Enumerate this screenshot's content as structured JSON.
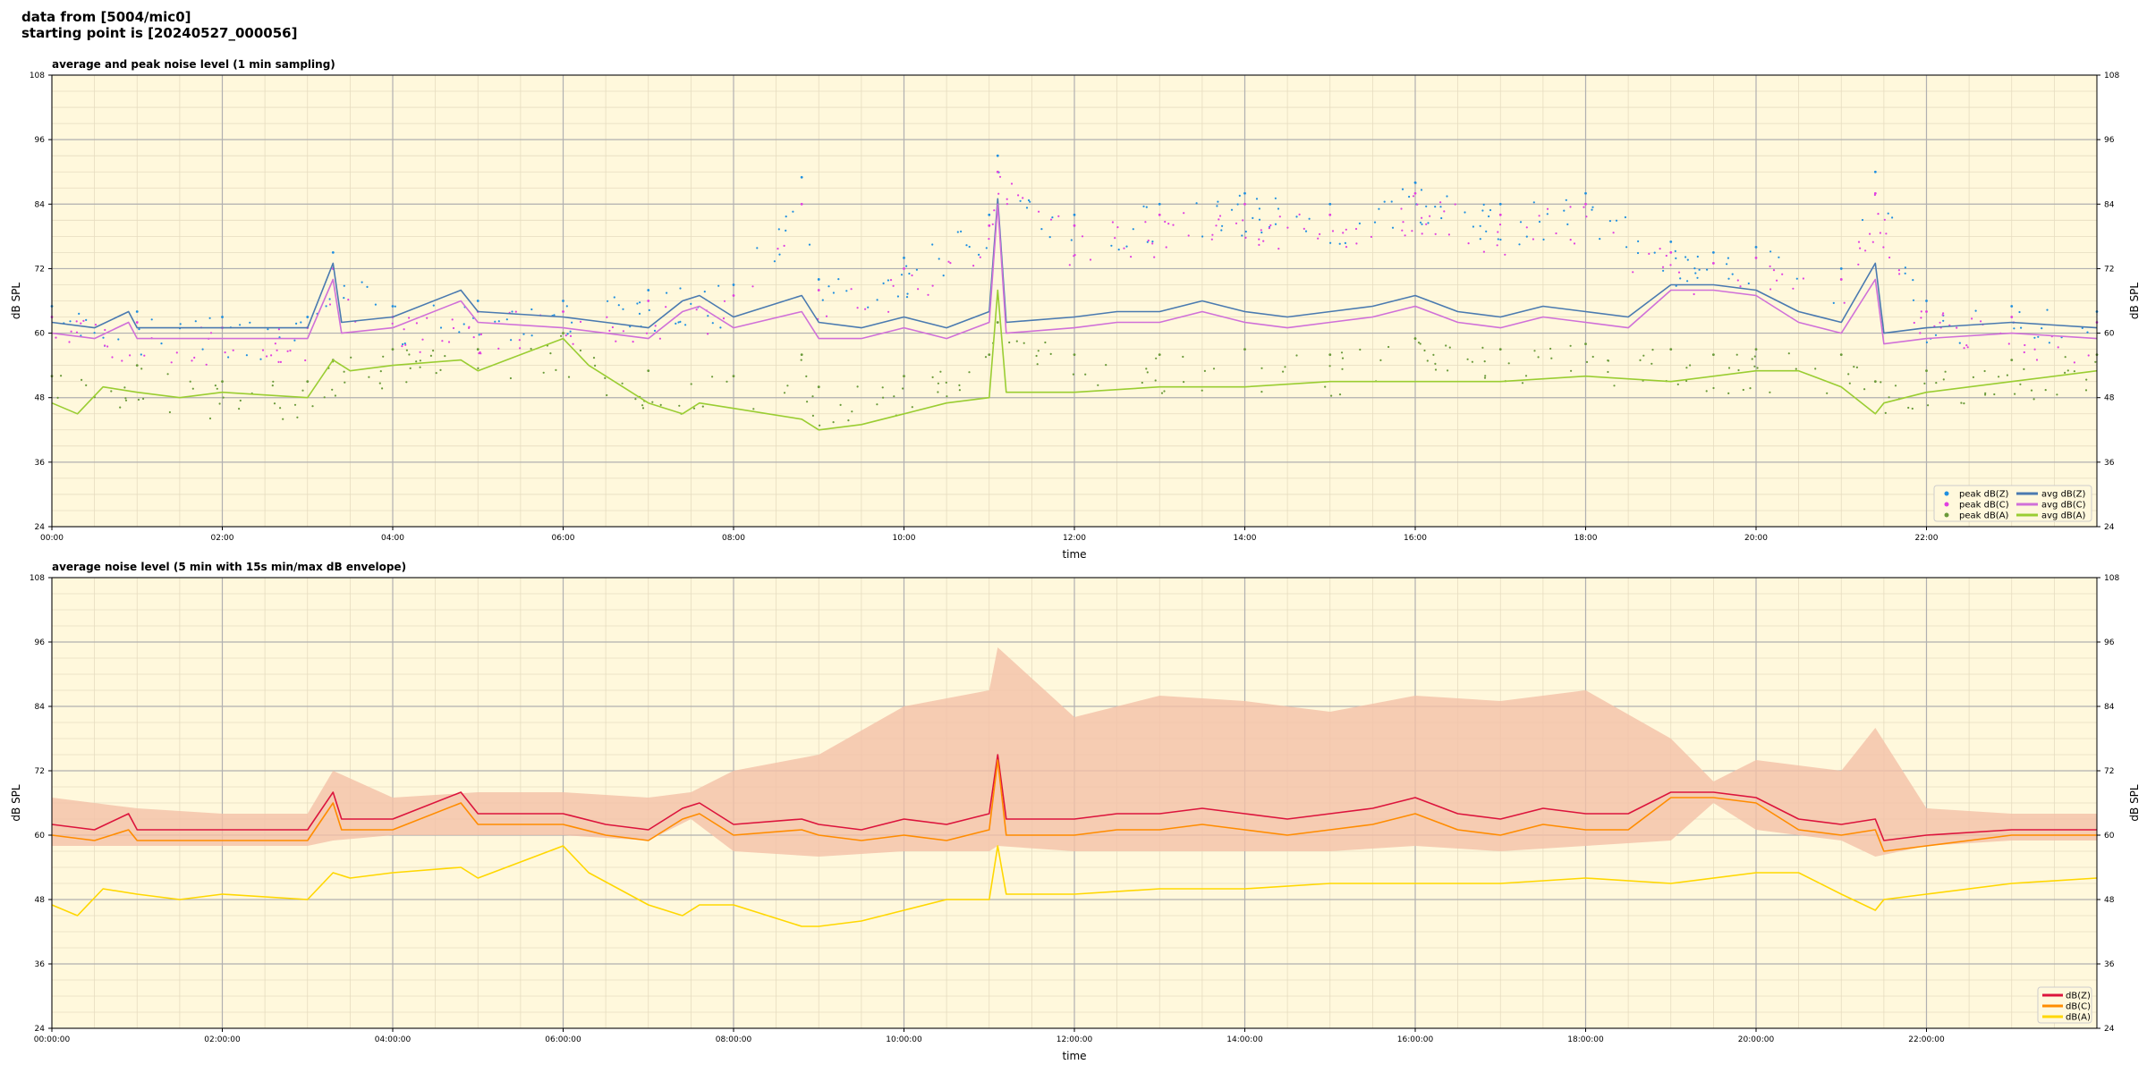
{
  "header": {
    "line1": "data from [5004/mic0]",
    "line2": "starting point is [20240527_000056]"
  },
  "colors": {
    "plot_bg": "#fff8dc",
    "grid_major": "#b0b0b0",
    "grid_minor": "#e6dcc0",
    "peak_z": "#1f8fe0",
    "peak_c": "#e040e0",
    "peak_a": "#6a9a3a",
    "avg_z": "#4a7ab0",
    "avg_c": "#d070d8",
    "avg_a": "#9acd32",
    "db_z": "#dc143c",
    "db_c": "#ff8c00",
    "db_a": "#ffd700",
    "envelope": "#f4c0a8"
  },
  "chart_data": [
    {
      "type": "line",
      "title": "average and peak noise level (1 min sampling)",
      "xlabel": "time",
      "ylabel": "dB SPL",
      "ylim": [
        24,
        108
      ],
      "yticks": [
        "24",
        "36",
        "48",
        "60",
        "72",
        "84",
        "96",
        "108"
      ],
      "xlim": [
        0,
        24
      ],
      "xticks": [
        "00:00",
        "02:00",
        "04:00",
        "06:00",
        "08:00",
        "10:00",
        "12:00",
        "14:00",
        "16:00",
        "18:00",
        "20:00",
        "22:00"
      ],
      "grid": true,
      "legend_position": "bottom-right",
      "series": [
        {
          "name": "peak dB(Z)",
          "kind": "scatter",
          "color": "peak_z",
          "x": [
            0,
            1,
            2,
            3,
            3.3,
            4,
            5,
            6,
            7,
            8,
            8.8,
            9,
            10,
            11,
            11.1,
            12,
            13,
            14,
            15,
            16,
            17,
            18,
            19,
            19.5,
            20,
            21,
            21.4,
            22,
            23,
            24
          ],
          "y": [
            65,
            64,
            63,
            63,
            75,
            65,
            66,
            66,
            68,
            69,
            89,
            70,
            74,
            82,
            93,
            82,
            84,
            86,
            84,
            88,
            84,
            86,
            77,
            75,
            76,
            72,
            90,
            66,
            65,
            64
          ]
        },
        {
          "name": "peak dB(C)",
          "kind": "scatter",
          "color": "peak_c",
          "x": [
            0,
            1,
            2,
            3,
            3.3,
            4,
            5,
            6,
            7,
            8,
            8.8,
            9,
            10,
            11,
            11.1,
            12,
            13,
            14,
            15,
            16,
            17,
            18,
            19,
            19.5,
            20,
            21,
            21.4,
            22,
            23,
            24
          ],
          "y": [
            63,
            62,
            61,
            61,
            72,
            63,
            64,
            64,
            66,
            67,
            84,
            68,
            72,
            80,
            90,
            80,
            82,
            84,
            82,
            86,
            82,
            84,
            75,
            73,
            74,
            70,
            86,
            64,
            63,
            62
          ]
        },
        {
          "name": "peak dB(A)",
          "kind": "scatter",
          "color": "peak_a",
          "x": [
            0,
            1,
            2,
            3,
            3.3,
            4,
            5,
            6,
            7,
            8,
            8.8,
            9,
            10,
            11,
            11.1,
            12,
            13,
            14,
            15,
            16,
            17,
            18,
            19,
            19.5,
            20,
            21,
            21.4,
            22,
            23,
            24
          ],
          "y": [
            52,
            54,
            51,
            51,
            55,
            57,
            57,
            60,
            53,
            52,
            56,
            50,
            52,
            56,
            62,
            56,
            56,
            57,
            56,
            59,
            57,
            58,
            57,
            56,
            57,
            56,
            51,
            53,
            55,
            56
          ]
        },
        {
          "name": "avg dB(Z)",
          "kind": "line",
          "color": "avg_z",
          "x": [
            0,
            0.5,
            0.9,
            1,
            2,
            3,
            3.3,
            3.4,
            4,
            4.8,
            5,
            6,
            6.5,
            7,
            7.4,
            7.6,
            8,
            8.8,
            9,
            9.5,
            10,
            10.5,
            11,
            11.1,
            11.2,
            12,
            12.5,
            13,
            13.5,
            14,
            14.5,
            15,
            15.5,
            16,
            16.5,
            17,
            17.5,
            18,
            18.5,
            19,
            19.5,
            20,
            20.5,
            21,
            21.4,
            21.5,
            22,
            23,
            24
          ],
          "y": [
            62,
            61,
            64,
            61,
            61,
            61,
            73,
            62,
            63,
            68,
            64,
            63,
            62,
            61,
            66,
            67,
            63,
            67,
            62,
            61,
            63,
            61,
            64,
            85,
            62,
            63,
            64,
            64,
            66,
            64,
            63,
            64,
            65,
            67,
            64,
            63,
            65,
            64,
            63,
            69,
            69,
            68,
            64,
            62,
            73,
            60,
            61,
            62,
            61
          ]
        },
        {
          "name": "avg dB(C)",
          "kind": "line",
          "color": "avg_c",
          "x": [
            0,
            0.5,
            0.9,
            1,
            2,
            3,
            3.3,
            3.4,
            4,
            4.8,
            5,
            6,
            6.5,
            7,
            7.4,
            7.6,
            8,
            8.8,
            9,
            9.5,
            10,
            10.5,
            11,
            11.1,
            11.2,
            12,
            12.5,
            13,
            13.5,
            14,
            14.5,
            15,
            15.5,
            16,
            16.5,
            17,
            17.5,
            18,
            18.5,
            19,
            19.5,
            20,
            20.5,
            21,
            21.4,
            21.5,
            22,
            23,
            24
          ],
          "y": [
            60,
            59,
            62,
            59,
            59,
            59,
            70,
            60,
            61,
            66,
            62,
            61,
            60,
            59,
            64,
            65,
            61,
            64,
            59,
            59,
            61,
            59,
            62,
            84,
            60,
            61,
            62,
            62,
            64,
            62,
            61,
            62,
            63,
            65,
            62,
            61,
            63,
            62,
            61,
            68,
            68,
            67,
            62,
            60,
            70,
            58,
            59,
            60,
            59
          ]
        },
        {
          "name": "avg dB(A)",
          "kind": "line",
          "color": "avg_a",
          "x": [
            0,
            0.3,
            0.6,
            1,
            1.5,
            2,
            3,
            3.3,
            3.5,
            4,
            4.8,
            5,
            5.5,
            6,
            6.3,
            7,
            7.4,
            7.6,
            8,
            8.8,
            9,
            9.5,
            10,
            10.5,
            11,
            11.1,
            11.2,
            12,
            13,
            14,
            15,
            16,
            17,
            18,
            19,
            20,
            20.5,
            21,
            21.4,
            21.5,
            22,
            23,
            24
          ],
          "y": [
            47,
            45,
            50,
            49,
            48,
            49,
            48,
            55,
            53,
            54,
            55,
            53,
            56,
            59,
            54,
            47,
            45,
            47,
            46,
            44,
            42,
            43,
            45,
            47,
            48,
            68,
            49,
            49,
            50,
            50,
            51,
            51,
            51,
            52,
            51,
            53,
            53,
            50,
            45,
            47,
            49,
            51,
            53
          ]
        }
      ]
    },
    {
      "type": "line",
      "title": "average noise level (5 min with 15s min/max dB envelope)",
      "xlabel": "time",
      "ylabel": "dB SPL",
      "ylim": [
        24,
        108
      ],
      "yticks": [
        "24",
        "36",
        "48",
        "60",
        "72",
        "84",
        "96",
        "108"
      ],
      "xlim": [
        0,
        24
      ],
      "xticks": [
        "00:00:00",
        "02:00:00",
        "04:00:00",
        "06:00:00",
        "08:00:00",
        "10:00:00",
        "12:00:00",
        "14:00:00",
        "16:00:00",
        "18:00:00",
        "20:00:00",
        "22:00:00"
      ],
      "grid": true,
      "legend_position": "bottom-right",
      "envelope": {
        "x": [
          0,
          1,
          2,
          3,
          3.3,
          4,
          5,
          6,
          7,
          7.5,
          8,
          9,
          10,
          11,
          11.1,
          12,
          13,
          14,
          15,
          16,
          17,
          18,
          19,
          19.5,
          20,
          21,
          21.4,
          22,
          23,
          24
        ],
        "min": [
          58,
          58,
          58,
          58,
          59,
          60,
          60,
          60,
          59,
          63,
          57,
          56,
          57,
          57,
          58,
          57,
          57,
          57,
          57,
          58,
          57,
          58,
          59,
          66,
          61,
          59,
          56,
          58,
          59,
          59
        ],
        "max": [
          67,
          65,
          64,
          64,
          72,
          67,
          68,
          68,
          67,
          68,
          72,
          75,
          84,
          87,
          95,
          82,
          86,
          85,
          83,
          86,
          85,
          87,
          78,
          70,
          74,
          72,
          80,
          65,
          64,
          64
        ]
      },
      "series": [
        {
          "name": "dB(Z)",
          "color": "db_z",
          "x": [
            0,
            0.5,
            0.9,
            1,
            2,
            3,
            3.3,
            3.4,
            4,
            4.8,
            5,
            6,
            6.5,
            7,
            7.4,
            7.6,
            8,
            8.8,
            9,
            9.5,
            10,
            10.5,
            11,
            11.1,
            11.2,
            12,
            12.5,
            13,
            13.5,
            14,
            14.5,
            15,
            15.5,
            16,
            16.5,
            17,
            17.5,
            18,
            18.5,
            19,
            19.5,
            20,
            20.5,
            21,
            21.4,
            21.5,
            22,
            23,
            24
          ],
          "y": [
            62,
            61,
            64,
            61,
            61,
            61,
            68,
            63,
            63,
            68,
            64,
            64,
            62,
            61,
            65,
            66,
            62,
            63,
            62,
            61,
            63,
            62,
            64,
            75,
            63,
            63,
            64,
            64,
            65,
            64,
            63,
            64,
            65,
            67,
            64,
            63,
            65,
            64,
            64,
            68,
            68,
            67,
            63,
            62,
            63,
            59,
            60,
            61,
            61
          ]
        },
        {
          "name": "dB(C)",
          "color": "db_c",
          "x": [
            0,
            0.5,
            0.9,
            1,
            2,
            3,
            3.3,
            3.4,
            4,
            4.8,
            5,
            6,
            6.5,
            7,
            7.4,
            7.6,
            8,
            8.8,
            9,
            9.5,
            10,
            10.5,
            11,
            11.1,
            11.2,
            12,
            12.5,
            13,
            13.5,
            14,
            14.5,
            15,
            15.5,
            16,
            16.5,
            17,
            17.5,
            18,
            18.5,
            19,
            19.5,
            20,
            20.5,
            21,
            21.4,
            21.5,
            22,
            23,
            24
          ],
          "y": [
            60,
            59,
            61,
            59,
            59,
            59,
            66,
            61,
            61,
            66,
            62,
            62,
            60,
            59,
            63,
            64,
            60,
            61,
            60,
            59,
            60,
            59,
            61,
            74,
            60,
            60,
            61,
            61,
            62,
            61,
            60,
            61,
            62,
            64,
            61,
            60,
            62,
            61,
            61,
            67,
            67,
            66,
            61,
            60,
            61,
            57,
            58,
            60,
            60
          ]
        },
        {
          "name": "dB(A)",
          "color": "db_a",
          "x": [
            0,
            0.3,
            0.6,
            1,
            1.5,
            2,
            3,
            3.3,
            3.5,
            4,
            4.8,
            5,
            5.5,
            6,
            6.3,
            7,
            7.4,
            7.6,
            8,
            8.8,
            9,
            9.5,
            10,
            10.5,
            11,
            11.1,
            11.2,
            12,
            13,
            14,
            15,
            16,
            17,
            18,
            19,
            20,
            20.5,
            21,
            21.4,
            21.5,
            22,
            23,
            24
          ],
          "y": [
            47,
            45,
            50,
            49,
            48,
            49,
            48,
            53,
            52,
            53,
            54,
            52,
            55,
            58,
            53,
            47,
            45,
            47,
            47,
            43,
            43,
            44,
            46,
            48,
            48,
            58,
            49,
            49,
            50,
            50,
            51,
            51,
            51,
            52,
            51,
            53,
            53,
            49,
            46,
            48,
            49,
            51,
            52
          ]
        }
      ]
    }
  ]
}
